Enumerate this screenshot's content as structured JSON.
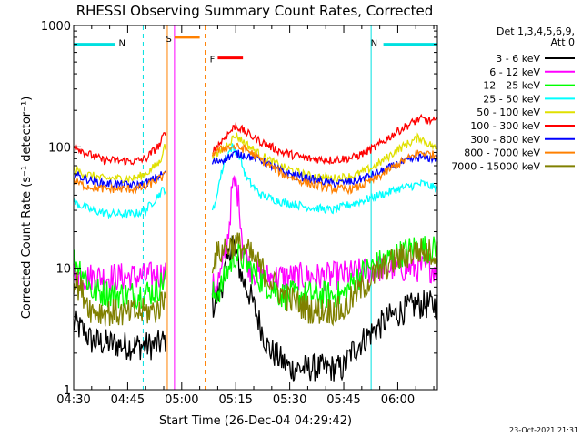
{
  "chart_data": {
    "type": "line",
    "title": "RHESSI Observing Summary Count Rates, Corrected",
    "ylabel": "Corrected Count Rate (s⁻¹ detector⁻¹)",
    "xlabel": "Start Time (26-Dec-04 04:29:42)",
    "footer": "23-Oct-2021 21:31",
    "ylim": [
      1,
      1000
    ],
    "yscale": "log",
    "xlim_minutes": [
      0,
      101
    ],
    "xticks": [
      {
        "t": 0,
        "label": "04:30"
      },
      {
        "t": 15,
        "label": "04:45"
      },
      {
        "t": 30,
        "label": "05:00"
      },
      {
        "t": 45,
        "label": "05:15"
      },
      {
        "t": 60,
        "label": "05:30"
      },
      {
        "t": 75,
        "label": "05:45"
      },
      {
        "t": 90,
        "label": "06:00"
      }
    ],
    "yticks": [
      {
        "v": 1,
        "label": "1"
      },
      {
        "v": 10,
        "label": "10"
      },
      {
        "v": 100,
        "label": "100"
      },
      {
        "v": 1000,
        "label": "1000"
      }
    ],
    "legend": {
      "header": [
        "Det 1,3,4,5,6,9,",
        "Att 0"
      ],
      "position": "right"
    },
    "gaps": [
      {
        "from": 25.5,
        "to": 38.5
      }
    ],
    "series": [
      {
        "name": "3 - 6 keV",
        "color": "#000000",
        "points": [
          [
            0,
            3.5
          ],
          [
            3,
            3.0
          ],
          [
            5,
            2.5
          ],
          [
            15,
            2.3
          ],
          [
            23,
            2.3
          ],
          [
            25,
            2.5
          ],
          [
            39,
            5
          ],
          [
            41,
            7
          ],
          [
            43,
            12
          ],
          [
            44,
            18
          ],
          [
            45,
            13
          ],
          [
            47,
            8
          ],
          [
            49,
            6
          ],
          [
            51,
            4
          ],
          [
            54,
            2.2
          ],
          [
            60,
            1.5
          ],
          [
            70,
            1.5
          ],
          [
            75,
            1.5
          ],
          [
            77,
            2
          ],
          [
            80,
            2.5
          ],
          [
            83,
            3
          ],
          [
            88,
            4
          ],
          [
            95,
            5
          ],
          [
            101,
            5
          ]
        ]
      },
      {
        "name": "6 - 12 keV",
        "color": "#ff00ff",
        "points": [
          [
            0,
            9
          ],
          [
            3,
            8.5
          ],
          [
            10,
            8.5
          ],
          [
            20,
            8.5
          ],
          [
            25,
            9
          ],
          [
            39,
            7
          ],
          [
            41,
            9
          ],
          [
            43,
            20
          ],
          [
            44,
            45
          ],
          [
            45,
            50
          ],
          [
            46,
            35
          ],
          [
            47,
            15
          ],
          [
            49,
            10
          ],
          [
            52,
            8.5
          ],
          [
            60,
            8.5
          ],
          [
            70,
            8.5
          ],
          [
            77,
            9
          ],
          [
            85,
            10
          ],
          [
            95,
            10
          ],
          [
            101,
            10
          ]
        ]
      },
      {
        "name": "12 - 25 keV",
        "color": "#00ff00",
        "points": [
          [
            0,
            12
          ],
          [
            3,
            9
          ],
          [
            5,
            6.5
          ],
          [
            15,
            6
          ],
          [
            23,
            6.5
          ],
          [
            25,
            8
          ],
          [
            39,
            6
          ],
          [
            41,
            7
          ],
          [
            43,
            10
          ],
          [
            45,
            13
          ],
          [
            47,
            12
          ],
          [
            49,
            10
          ],
          [
            52,
            8
          ],
          [
            58,
            6
          ],
          [
            66,
            6
          ],
          [
            75,
            6
          ],
          [
            78,
            8
          ],
          [
            82,
            10
          ],
          [
            88,
            12
          ],
          [
            95,
            15
          ],
          [
            101,
            14
          ]
        ]
      },
      {
        "name": "25 - 50 keV",
        "color": "#00ffff",
        "points": [
          [
            0,
            35
          ],
          [
            5,
            30
          ],
          [
            10,
            28
          ],
          [
            17,
            28
          ],
          [
            20,
            30
          ],
          [
            25,
            45
          ],
          [
            39,
            30
          ],
          [
            40,
            45
          ],
          [
            42,
            80
          ],
          [
            44,
            100
          ],
          [
            46,
            85
          ],
          [
            48,
            55
          ],
          [
            52,
            40
          ],
          [
            58,
            35
          ],
          [
            65,
            32
          ],
          [
            72,
            30
          ],
          [
            76,
            33
          ],
          [
            85,
            40
          ],
          [
            90,
            45
          ],
          [
            97,
            50
          ],
          [
            101,
            45
          ]
        ]
      },
      {
        "name": "50 - 100 keV",
        "color": "#e0e000",
        "points": [
          [
            0,
            65
          ],
          [
            3,
            60
          ],
          [
            8,
            55
          ],
          [
            17,
            55
          ],
          [
            20,
            60
          ],
          [
            24,
            75
          ],
          [
            25,
            100
          ],
          [
            39,
            80
          ],
          [
            42,
            100
          ],
          [
            45,
            125
          ],
          [
            48,
            105
          ],
          [
            52,
            85
          ],
          [
            58,
            68
          ],
          [
            65,
            58
          ],
          [
            72,
            55
          ],
          [
            78,
            58
          ],
          [
            84,
            70
          ],
          [
            90,
            95
          ],
          [
            96,
            120
          ],
          [
            101,
            95
          ]
        ]
      },
      {
        "name": "100 - 300 keV",
        "color": "#ff0000",
        "points": [
          [
            0,
            105
          ],
          [
            3,
            90
          ],
          [
            8,
            78
          ],
          [
            17,
            76
          ],
          [
            20,
            80
          ],
          [
            24,
            105
          ],
          [
            25,
            125
          ],
          [
            39,
            95
          ],
          [
            42,
            120
          ],
          [
            45,
            150
          ],
          [
            48,
            130
          ],
          [
            52,
            110
          ],
          [
            58,
            90
          ],
          [
            65,
            80
          ],
          [
            72,
            78
          ],
          [
            78,
            82
          ],
          [
            84,
            100
          ],
          [
            90,
            135
          ],
          [
            96,
            170
          ],
          [
            101,
            160
          ]
        ]
      },
      {
        "name": "300 - 800 keV",
        "color": "#0000ff",
        "points": [
          [
            0,
            60
          ],
          [
            3,
            55
          ],
          [
            8,
            50
          ],
          [
            17,
            48
          ],
          [
            20,
            50
          ],
          [
            24,
            58
          ],
          [
            25,
            60
          ],
          [
            39,
            75
          ],
          [
            42,
            80
          ],
          [
            45,
            88
          ],
          [
            48,
            85
          ],
          [
            52,
            78
          ],
          [
            58,
            62
          ],
          [
            65,
            55
          ],
          [
            72,
            50
          ],
          [
            78,
            52
          ],
          [
            84,
            60
          ],
          [
            90,
            72
          ],
          [
            96,
            82
          ],
          [
            101,
            80
          ]
        ]
      },
      {
        "name": "800 - 7000 keV",
        "color": "#ff8000",
        "points": [
          [
            0,
            52
          ],
          [
            3,
            48
          ],
          [
            8,
            45
          ],
          [
            17,
            45
          ],
          [
            20,
            47
          ],
          [
            24,
            55
          ],
          [
            25,
            57
          ],
          [
            39,
            90
          ],
          [
            42,
            98
          ],
          [
            45,
            100
          ],
          [
            48,
            95
          ],
          [
            52,
            78
          ],
          [
            58,
            60
          ],
          [
            65,
            50
          ],
          [
            72,
            45
          ],
          [
            78,
            45
          ],
          [
            84,
            55
          ],
          [
            90,
            72
          ],
          [
            96,
            90
          ],
          [
            101,
            85
          ]
        ]
      },
      {
        "name": "7000 - 15000 keV",
        "color": "#808000",
        "points": [
          [
            0,
            8
          ],
          [
            3,
            6
          ],
          [
            5,
            4.5
          ],
          [
            15,
            4.2
          ],
          [
            23,
            4.5
          ],
          [
            25,
            5.5
          ],
          [
            39,
            12
          ],
          [
            42,
            15
          ],
          [
            45,
            16
          ],
          [
            48,
            14
          ],
          [
            52,
            10
          ],
          [
            58,
            6
          ],
          [
            66,
            4.5
          ],
          [
            75,
            4.5
          ],
          [
            78,
            6
          ],
          [
            84,
            9
          ],
          [
            90,
            12
          ],
          [
            96,
            14
          ],
          [
            101,
            13
          ]
        ]
      }
    ],
    "annotations": [
      {
        "label": "N",
        "color": "#00e0e0",
        "type": "bar",
        "t_from": 0,
        "t_to": 11.5,
        "v": 700
      },
      {
        "label": "N",
        "color": "#00e0e0",
        "type": "bar",
        "t_from": 86,
        "t_to": 101,
        "v": 700
      },
      {
        "label": "S",
        "color": "#ff8000",
        "type": "bar",
        "t_from": 28,
        "t_to": 35,
        "v": 800
      },
      {
        "label": "F",
        "color": "#ff0000",
        "type": "bar",
        "t_from": 40,
        "t_to": 47,
        "v": 540
      }
    ],
    "vlines": [
      {
        "t": 0,
        "color": "#00e0e0",
        "style": "solid"
      },
      {
        "t": 19.3,
        "color": "#00e0e0",
        "style": "dashed"
      },
      {
        "t": 82.6,
        "color": "#00e0e0",
        "style": "solid"
      },
      {
        "t": 101,
        "color": "#00e0e0",
        "style": "dashed"
      },
      {
        "t": 26,
        "color": "#ff8000",
        "style": "solid"
      },
      {
        "t": 36.5,
        "color": "#ff8000",
        "style": "dashed"
      },
      {
        "t": 28,
        "color": "#ff00ff",
        "style": "solid"
      }
    ]
  }
}
